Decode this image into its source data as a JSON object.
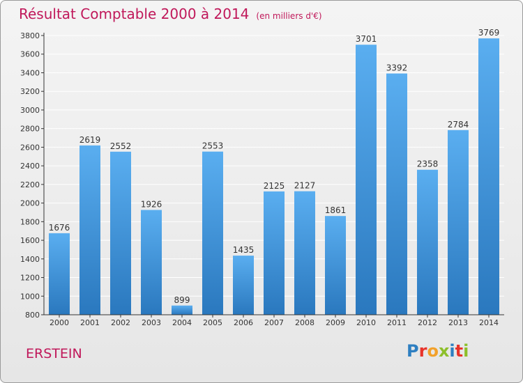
{
  "header": {
    "title": "Résultat Comptable 2000 à 2014",
    "unit": "(en milliers d'€)"
  },
  "footer": {
    "town": "ERSTEIN",
    "logo_letters": [
      "P",
      "r",
      "o",
      "x",
      "i",
      "t",
      "i"
    ],
    "logo_colors": [
      "#2e7fc1",
      "#e8332a",
      "#f2a12a",
      "#8dbf2a",
      "#2e7fc1",
      "#e8332a",
      "#8dbf2a"
    ]
  },
  "colors": {
    "title": "#c0185a",
    "bar_top": "#5aaef0",
    "bar_bottom": "#2a78be",
    "grid": "#ffffff",
    "axis": "#333333"
  },
  "chart_data": {
    "type": "bar",
    "title": "Résultat Comptable 2000 à 2014",
    "subtitle": "(en milliers d'€)",
    "categories": [
      "2000",
      "2001",
      "2002",
      "2003",
      "2004",
      "2005",
      "2006",
      "2007",
      "2008",
      "2009",
      "2010",
      "2011",
      "2012",
      "2013",
      "2014"
    ],
    "values": [
      1676,
      2619,
      2552,
      1926,
      899,
      2553,
      1435,
      2125,
      2127,
      1861,
      3701,
      3392,
      2358,
      2784,
      3769
    ],
    "data_labels": [
      "1676",
      "2619",
      "2552",
      "1926",
      "899",
      "2553",
      "1435",
      "2125",
      "2127",
      "1861",
      "3701",
      "3392",
      "2358",
      "2784",
      "3769"
    ],
    "xlabel": "",
    "ylabel": "",
    "ylim": [
      800,
      3800
    ],
    "yticks": [
      800,
      1000,
      1200,
      1400,
      1600,
      1800,
      2000,
      2200,
      2400,
      2600,
      2800,
      3000,
      3200,
      3400,
      3600,
      3800
    ],
    "grid": true,
    "legend": "none"
  }
}
